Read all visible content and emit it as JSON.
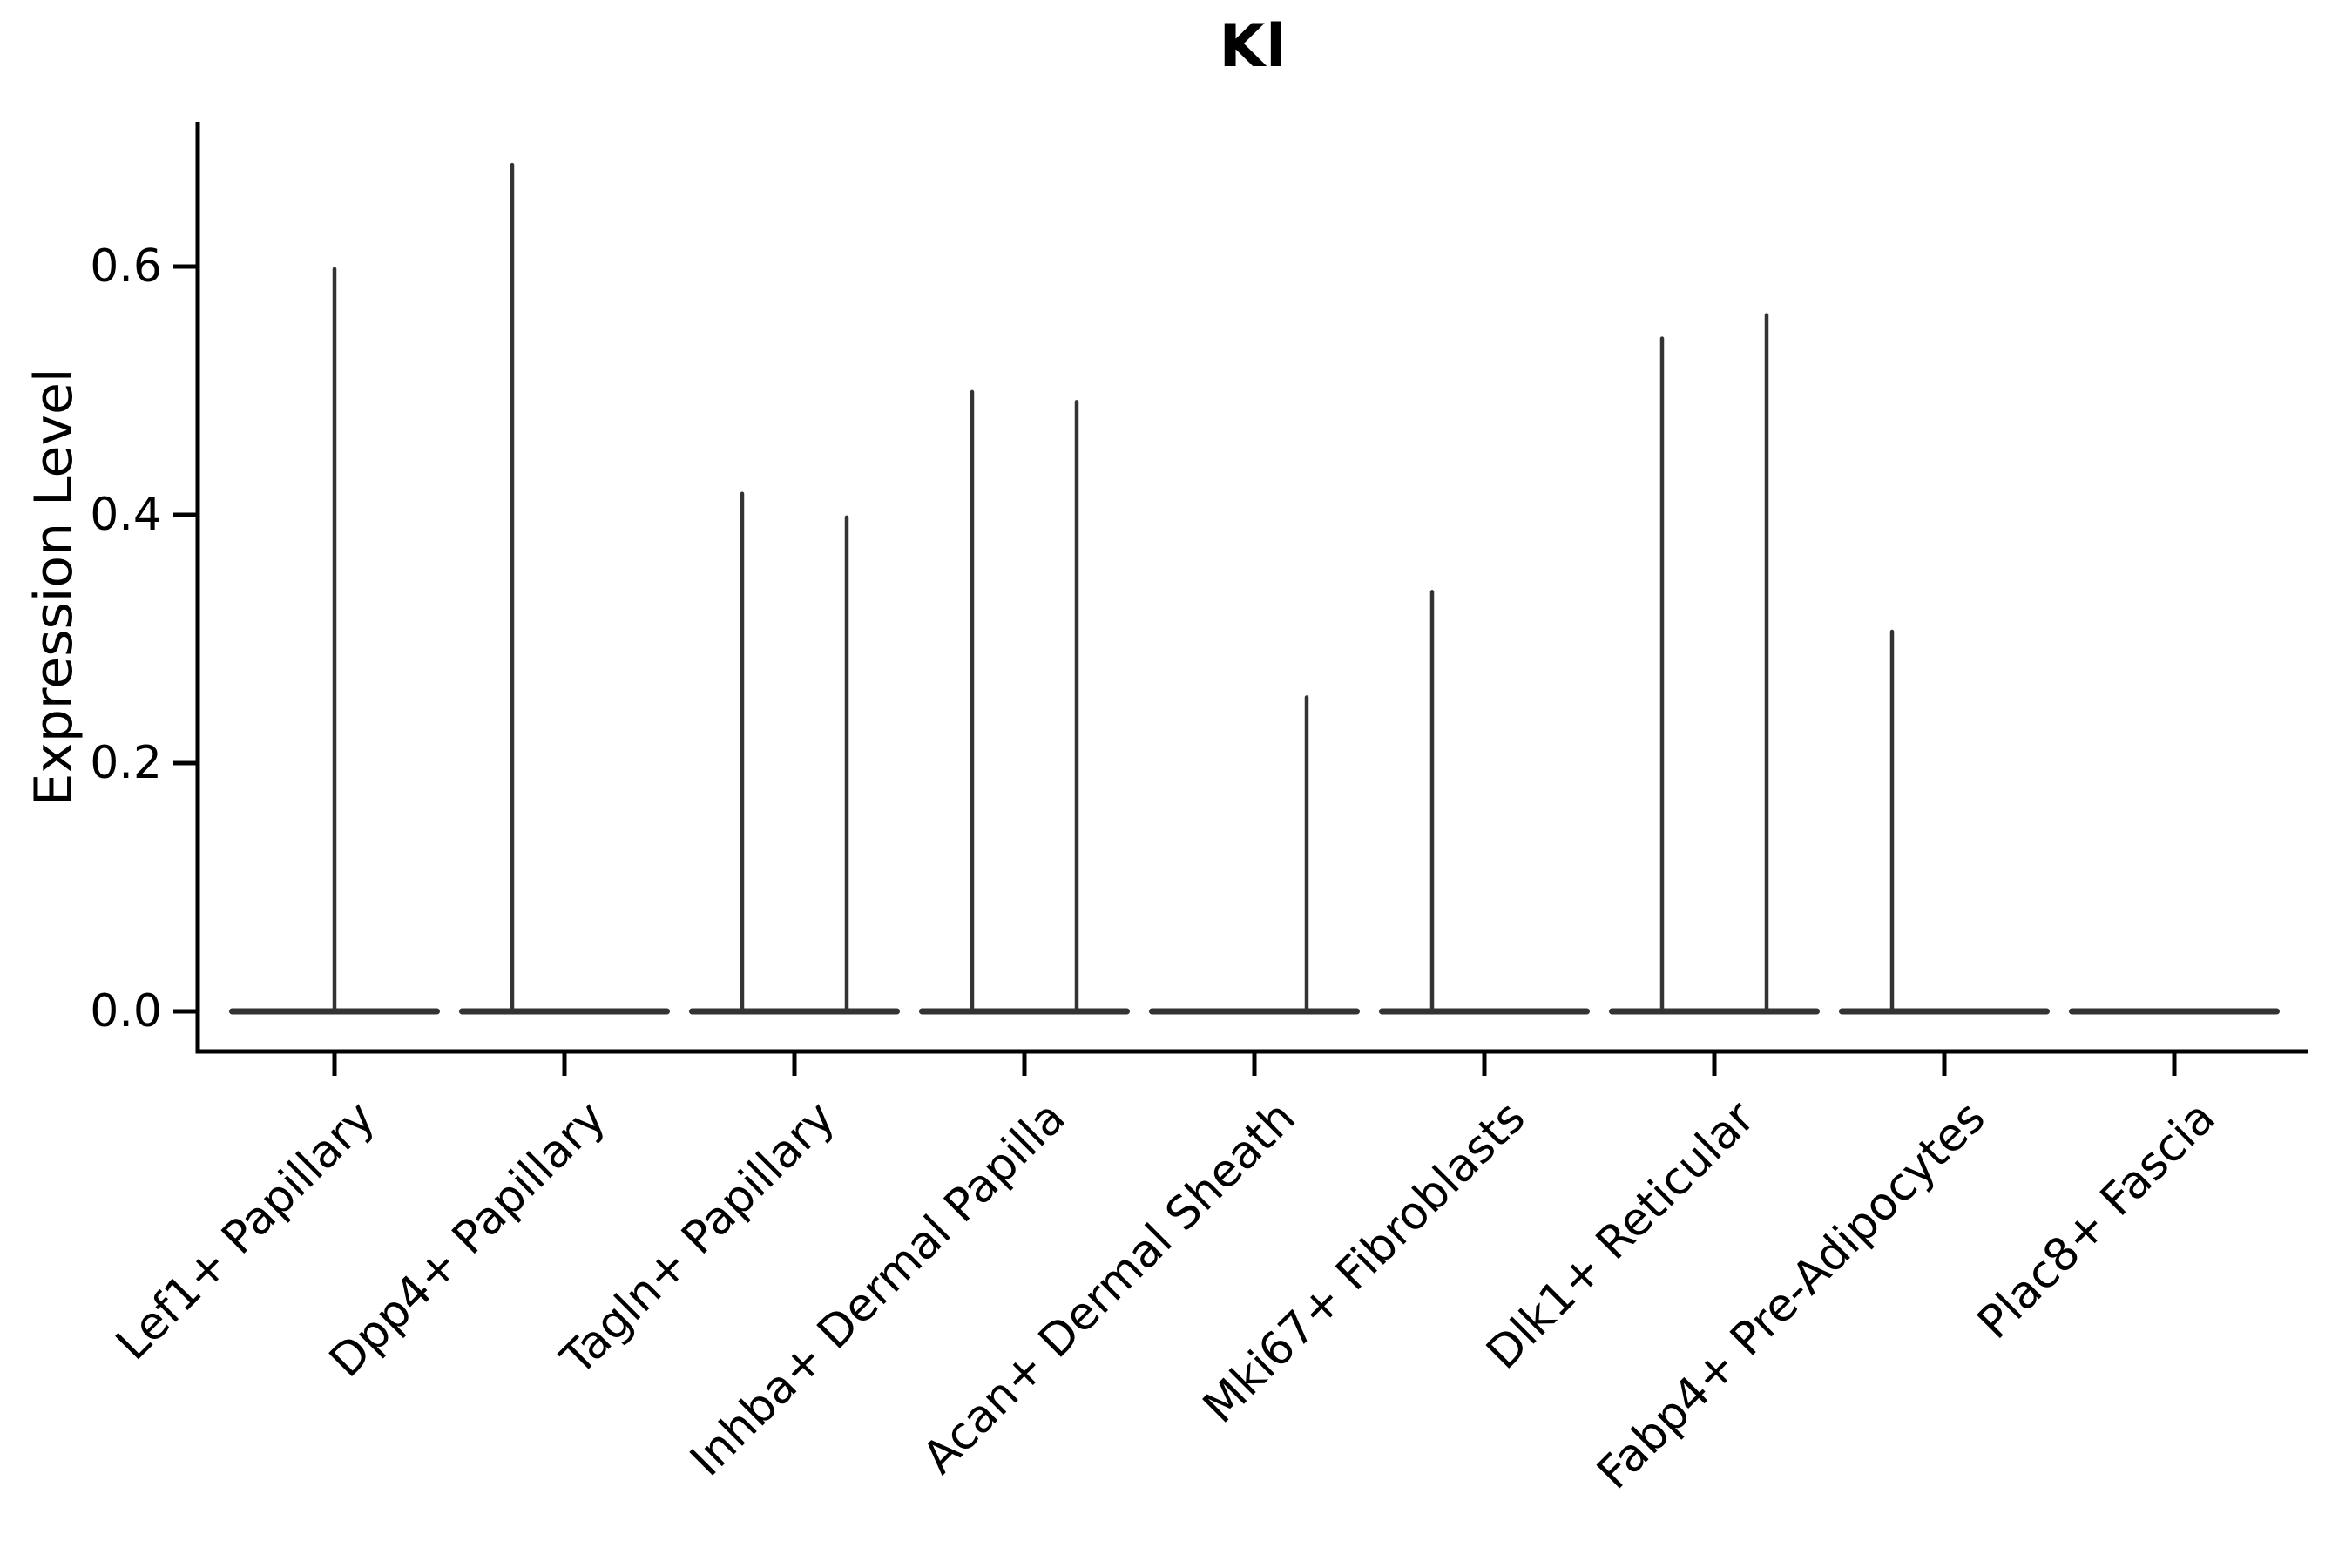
{
  "figure": {
    "title": "Kl",
    "ylabel": "Expression Level"
  },
  "chart_data": {
    "type": "violin",
    "title": "Kl",
    "xlabel": "",
    "ylabel": "Expression Level",
    "ylim": [
      -0.033,
      0.717
    ],
    "yticks": [
      0.0,
      0.2,
      0.4,
      0.6
    ],
    "grid": false,
    "legend": "none",
    "categories": [
      "Lef1+ Papillary",
      "Dpp4+ Papillary",
      "Tagln+ Papillary",
      "Inhba+ Dermal Papilla",
      "Acan+ Dermal Sheath",
      "Mki67+ Fibroblasts",
      "Dlk1+ Reticular",
      "Fabp4+ Pre-Adipocytes",
      "Plac8+ Fascia"
    ],
    "violins": [
      {
        "category": "Lef1+ Papillary",
        "base_at_zero": true,
        "spikes": [
          {
            "side": "center",
            "max": 0.598
          }
        ]
      },
      {
        "category": "Dpp4+ Papillary",
        "base_at_zero": true,
        "spikes": [
          {
            "side": "left",
            "max": 0.682
          }
        ]
      },
      {
        "category": "Tagln+ Papillary",
        "base_at_zero": true,
        "spikes": [
          {
            "side": "left",
            "max": 0.417
          },
          {
            "side": "right",
            "max": 0.398
          }
        ]
      },
      {
        "category": "Inhba+ Dermal Papilla",
        "base_at_zero": true,
        "spikes": [
          {
            "side": "left",
            "max": 0.499
          },
          {
            "side": "right",
            "max": 0.491
          }
        ]
      },
      {
        "category": "Acan+ Dermal Sheath",
        "base_at_zero": true,
        "spikes": [
          {
            "side": "right",
            "max": 0.253
          }
        ]
      },
      {
        "category": "Mki67+ Fibroblasts",
        "base_at_zero": true,
        "spikes": [
          {
            "side": "left",
            "max": 0.338
          }
        ]
      },
      {
        "category": "Dlk1+ Reticular",
        "base_at_zero": true,
        "spikes": [
          {
            "side": "left",
            "max": 0.542
          },
          {
            "side": "right",
            "max": 0.561
          }
        ]
      },
      {
        "category": "Fabp4+ Pre-Adipocytes",
        "base_at_zero": true,
        "spikes": [
          {
            "side": "left",
            "max": 0.306
          }
        ]
      },
      {
        "category": "Plac8+ Fascia",
        "base_at_zero": true,
        "spikes": []
      }
    ],
    "colors": {
      "violin": "#333333",
      "axis": "#000000",
      "text": "#000000",
      "background": "#ffffff"
    }
  }
}
